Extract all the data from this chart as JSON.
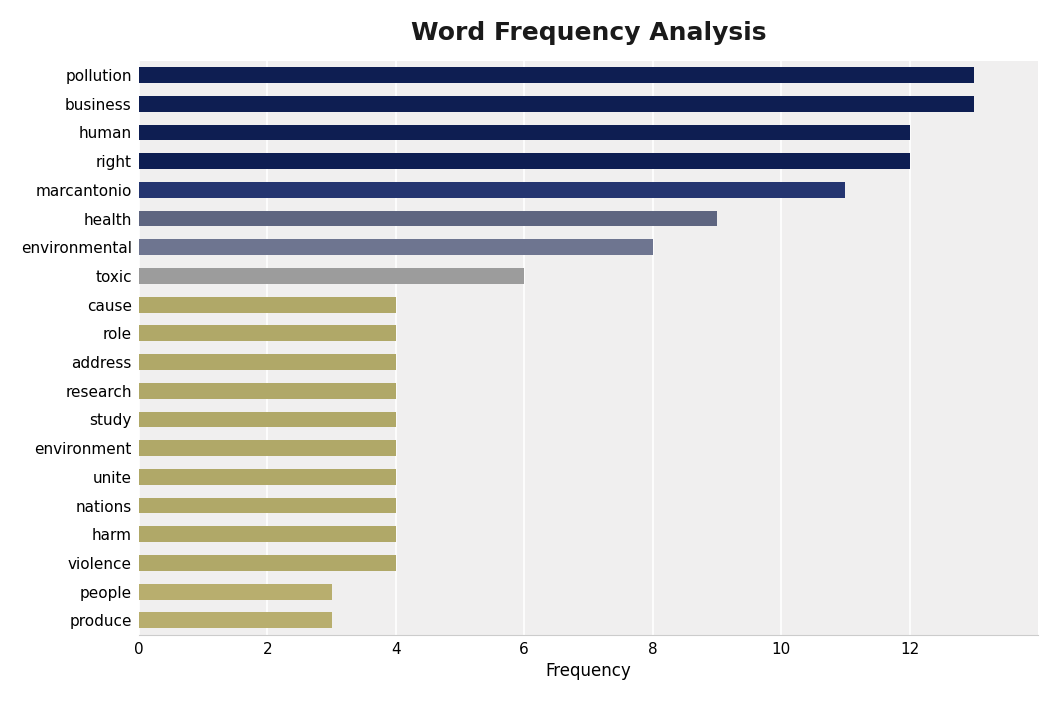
{
  "title": "Word Frequency Analysis",
  "xlabel": "Frequency",
  "categories": [
    "produce",
    "people",
    "violence",
    "harm",
    "nations",
    "unite",
    "environment",
    "study",
    "research",
    "address",
    "role",
    "cause",
    "toxic",
    "environmental",
    "health",
    "marcantonio",
    "right",
    "human",
    "business",
    "pollution"
  ],
  "values": [
    3,
    3,
    4,
    4,
    4,
    4,
    4,
    4,
    4,
    4,
    4,
    4,
    6,
    8,
    9,
    11,
    12,
    12,
    13,
    13
  ],
  "bar_colors": [
    "#b8ae6e",
    "#b8ae6e",
    "#b0a868",
    "#b0a868",
    "#b0a868",
    "#b0a868",
    "#b0a868",
    "#b0a868",
    "#b0a868",
    "#b0a868",
    "#b0a868",
    "#b0a868",
    "#9c9c9c",
    "#6e7590",
    "#5e6580",
    "#243570",
    "#0e1e52",
    "#0e1e52",
    "#0e1e52",
    "#0e1e52"
  ],
  "outer_background": "#ffffff",
  "plot_background": "#f0efef",
  "title_fontsize": 18,
  "xlim": [
    0,
    14
  ],
  "xticks": [
    0,
    2,
    4,
    6,
    8,
    10,
    12
  ],
  "bar_height": 0.55,
  "label_fontsize": 11,
  "xlabel_fontsize": 12
}
